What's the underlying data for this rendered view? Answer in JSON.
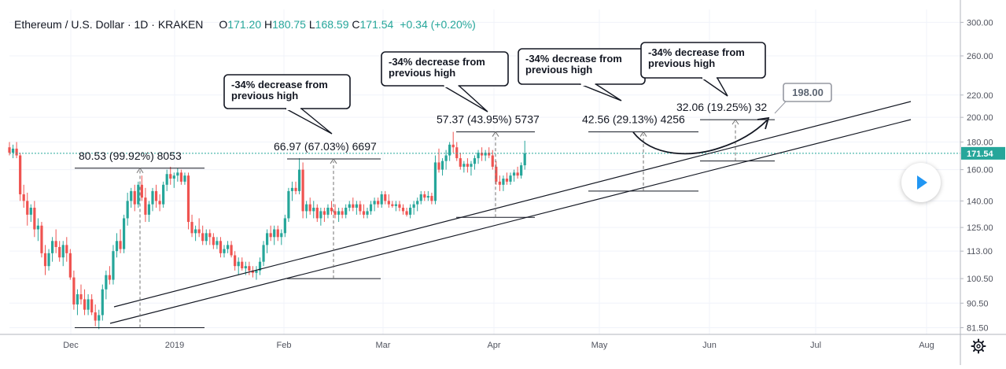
{
  "header": {
    "symbol": "Ethereum / U.S. Dollar · 1D · KRAKEN",
    "o_label": "O",
    "o_value": "171.20",
    "h_label": "H",
    "h_value": "180.75",
    "l_label": "L",
    "l_value": "168.59",
    "c_label": "C",
    "c_value": "171.54",
    "change": "+0.34 (+0.20%)"
  },
  "chart_data": {
    "type": "candlestick",
    "x_ticks": [
      "Dec",
      "2019",
      "Feb",
      "Mar",
      "Apr",
      "May",
      "Jun",
      "Jul",
      "Aug"
    ],
    "y_ticks": [
      "300.00",
      "260.00",
      "220.00",
      "200.00",
      "180.00",
      "160.00",
      "140.00",
      "125.00",
      "113.00",
      "100.50",
      "90.50",
      "81.50"
    ],
    "y_scale": "log",
    "ylim": [
      78,
      305
    ],
    "current_price": 171.54,
    "current_price_label": "171.54",
    "target_label": "198.00",
    "callouts": [
      {
        "line1": "-34% decrease from",
        "line2": "previous high"
      },
      {
        "line1": "-34% decrease from",
        "line2": "previous high"
      },
      {
        "line1": "-34% decrease from",
        "line2": "previous high"
      },
      {
        "line1": "-34% decrease from",
        "line2": "previous high"
      }
    ],
    "measurements": [
      {
        "label": "80.53 (99.92%) 8053",
        "low": 81.5,
        "high": 161
      },
      {
        "label": "66.97 (67.03%) 6697",
        "low": 100.5,
        "high": 167.5
      },
      {
        "label": "57.37 (43.95%) 5737",
        "low": 130.5,
        "high": 188
      },
      {
        "label": "42.56 (29.13%) 4256",
        "low": 146,
        "high": 188
      },
      {
        "label": "32.06 (19.25%) 32",
        "low": 166,
        "high": 198
      }
    ],
    "candles": [
      {
        "o": 176,
        "h": 180,
        "l": 170,
        "c": 172
      },
      {
        "o": 172,
        "h": 178,
        "l": 168,
        "c": 175
      },
      {
        "o": 175,
        "h": 180,
        "l": 168,
        "c": 170
      },
      {
        "o": 170,
        "h": 172,
        "l": 140,
        "c": 144
      },
      {
        "o": 144,
        "h": 150,
        "l": 136,
        "c": 140
      },
      {
        "o": 140,
        "h": 145,
        "l": 126,
        "c": 132
      },
      {
        "o": 132,
        "h": 138,
        "l": 128,
        "c": 136
      },
      {
        "o": 136,
        "h": 140,
        "l": 120,
        "c": 124
      },
      {
        "o": 124,
        "h": 130,
        "l": 118,
        "c": 126
      },
      {
        "o": 126,
        "h": 128,
        "l": 110,
        "c": 112
      },
      {
        "o": 112,
        "h": 116,
        "l": 102,
        "c": 106
      },
      {
        "o": 106,
        "h": 114,
        "l": 104,
        "c": 112
      },
      {
        "o": 112,
        "h": 120,
        "l": 108,
        "c": 118
      },
      {
        "o": 118,
        "h": 124,
        "l": 112,
        "c": 115
      },
      {
        "o": 115,
        "h": 118,
        "l": 108,
        "c": 110
      },
      {
        "o": 110,
        "h": 118,
        "l": 106,
        "c": 116
      },
      {
        "o": 116,
        "h": 120,
        "l": 108,
        "c": 112
      },
      {
        "o": 112,
        "h": 114,
        "l": 100,
        "c": 101
      },
      {
        "o": 101,
        "h": 104,
        "l": 88,
        "c": 90
      },
      {
        "o": 90,
        "h": 96,
        "l": 86,
        "c": 94
      },
      {
        "o": 94,
        "h": 98,
        "l": 90,
        "c": 92
      },
      {
        "o": 92,
        "h": 96,
        "l": 86,
        "c": 88
      },
      {
        "o": 88,
        "h": 94,
        "l": 86,
        "c": 92
      },
      {
        "o": 92,
        "h": 94,
        "l": 86,
        "c": 87
      },
      {
        "o": 87,
        "h": 90,
        "l": 82,
        "c": 84
      },
      {
        "o": 84,
        "h": 88,
        "l": 81,
        "c": 86
      },
      {
        "o": 86,
        "h": 98,
        "l": 84,
        "c": 96
      },
      {
        "o": 96,
        "h": 104,
        "l": 92,
        "c": 102
      },
      {
        "o": 102,
        "h": 106,
        "l": 98,
        "c": 100
      },
      {
        "o": 100,
        "h": 116,
        "l": 98,
        "c": 113
      },
      {
        "o": 113,
        "h": 122,
        "l": 110,
        "c": 118
      },
      {
        "o": 118,
        "h": 124,
        "l": 112,
        "c": 114
      },
      {
        "o": 114,
        "h": 132,
        "l": 112,
        "c": 130
      },
      {
        "o": 130,
        "h": 145,
        "l": 126,
        "c": 140
      },
      {
        "o": 140,
        "h": 148,
        "l": 136,
        "c": 146
      },
      {
        "o": 146,
        "h": 150,
        "l": 134,
        "c": 138
      },
      {
        "o": 138,
        "h": 152,
        "l": 136,
        "c": 150
      },
      {
        "o": 150,
        "h": 156,
        "l": 140,
        "c": 142
      },
      {
        "o": 142,
        "h": 148,
        "l": 128,
        "c": 132
      },
      {
        "o": 132,
        "h": 140,
        "l": 128,
        "c": 138
      },
      {
        "o": 138,
        "h": 148,
        "l": 134,
        "c": 146
      },
      {
        "o": 146,
        "h": 150,
        "l": 136,
        "c": 140
      },
      {
        "o": 140,
        "h": 144,
        "l": 134,
        "c": 138
      },
      {
        "o": 138,
        "h": 152,
        "l": 136,
        "c": 150
      },
      {
        "o": 150,
        "h": 160,
        "l": 146,
        "c": 157
      },
      {
        "o": 157,
        "h": 162,
        "l": 150,
        "c": 154
      },
      {
        "o": 154,
        "h": 158,
        "l": 148,
        "c": 156
      },
      {
        "o": 156,
        "h": 161,
        "l": 152,
        "c": 158
      },
      {
        "o": 158,
        "h": 160,
        "l": 150,
        "c": 152
      },
      {
        "o": 152,
        "h": 158,
        "l": 150,
        "c": 156
      },
      {
        "o": 156,
        "h": 158,
        "l": 124,
        "c": 128
      },
      {
        "o": 128,
        "h": 132,
        "l": 120,
        "c": 122
      },
      {
        "o": 122,
        "h": 126,
        "l": 118,
        "c": 124
      },
      {
        "o": 124,
        "h": 130,
        "l": 120,
        "c": 122
      },
      {
        "o": 122,
        "h": 126,
        "l": 116,
        "c": 118
      },
      {
        "o": 118,
        "h": 124,
        "l": 116,
        "c": 122
      },
      {
        "o": 122,
        "h": 124,
        "l": 116,
        "c": 120
      },
      {
        "o": 120,
        "h": 122,
        "l": 114,
        "c": 116
      },
      {
        "o": 116,
        "h": 120,
        "l": 114,
        "c": 118
      },
      {
        "o": 118,
        "h": 120,
        "l": 110,
        "c": 112
      },
      {
        "o": 112,
        "h": 116,
        "l": 110,
        "c": 114
      },
      {
        "o": 114,
        "h": 118,
        "l": 112,
        "c": 116
      },
      {
        "o": 116,
        "h": 118,
        "l": 110,
        "c": 111
      },
      {
        "o": 111,
        "h": 113,
        "l": 104,
        "c": 106
      },
      {
        "o": 106,
        "h": 110,
        "l": 102,
        "c": 108
      },
      {
        "o": 108,
        "h": 110,
        "l": 104,
        "c": 105
      },
      {
        "o": 105,
        "h": 108,
        "l": 102,
        "c": 106
      },
      {
        "o": 106,
        "h": 108,
        "l": 102,
        "c": 104
      },
      {
        "o": 104,
        "h": 106,
        "l": 101,
        "c": 103
      },
      {
        "o": 103,
        "h": 106,
        "l": 100,
        "c": 104
      },
      {
        "o": 104,
        "h": 110,
        "l": 102,
        "c": 108
      },
      {
        "o": 108,
        "h": 118,
        "l": 106,
        "c": 116
      },
      {
        "o": 116,
        "h": 124,
        "l": 112,
        "c": 122
      },
      {
        "o": 122,
        "h": 126,
        "l": 118,
        "c": 120
      },
      {
        "o": 120,
        "h": 126,
        "l": 116,
        "c": 124
      },
      {
        "o": 124,
        "h": 126,
        "l": 118,
        "c": 120
      },
      {
        "o": 120,
        "h": 124,
        "l": 116,
        "c": 122
      },
      {
        "o": 122,
        "h": 132,
        "l": 120,
        "c": 130
      },
      {
        "o": 130,
        "h": 148,
        "l": 128,
        "c": 146
      },
      {
        "o": 146,
        "h": 152,
        "l": 140,
        "c": 148
      },
      {
        "o": 148,
        "h": 152,
        "l": 144,
        "c": 146
      },
      {
        "o": 146,
        "h": 168,
        "l": 144,
        "c": 160
      },
      {
        "o": 160,
        "h": 165,
        "l": 130,
        "c": 134
      },
      {
        "o": 134,
        "h": 140,
        "l": 130,
        "c": 138
      },
      {
        "o": 138,
        "h": 142,
        "l": 132,
        "c": 134
      },
      {
        "o": 134,
        "h": 140,
        "l": 130,
        "c": 136
      },
      {
        "o": 136,
        "h": 138,
        "l": 128,
        "c": 130
      },
      {
        "o": 130,
        "h": 136,
        "l": 126,
        "c": 134
      },
      {
        "o": 134,
        "h": 136,
        "l": 128,
        "c": 132
      },
      {
        "o": 132,
        "h": 138,
        "l": 130,
        "c": 136
      },
      {
        "o": 136,
        "h": 140,
        "l": 132,
        "c": 134
      },
      {
        "o": 134,
        "h": 138,
        "l": 130,
        "c": 132
      },
      {
        "o": 132,
        "h": 136,
        "l": 128,
        "c": 134
      },
      {
        "o": 134,
        "h": 136,
        "l": 130,
        "c": 132
      },
      {
        "o": 132,
        "h": 138,
        "l": 130,
        "c": 136
      },
      {
        "o": 136,
        "h": 140,
        "l": 134,
        "c": 138
      },
      {
        "o": 138,
        "h": 142,
        "l": 134,
        "c": 136
      },
      {
        "o": 136,
        "h": 140,
        "l": 132,
        "c": 138
      },
      {
        "o": 138,
        "h": 140,
        "l": 132,
        "c": 134
      },
      {
        "o": 134,
        "h": 138,
        "l": 130,
        "c": 132
      },
      {
        "o": 132,
        "h": 136,
        "l": 130,
        "c": 134
      },
      {
        "o": 134,
        "h": 140,
        "l": 132,
        "c": 138
      },
      {
        "o": 138,
        "h": 142,
        "l": 134,
        "c": 140
      },
      {
        "o": 140,
        "h": 142,
        "l": 136,
        "c": 138
      },
      {
        "o": 138,
        "h": 146,
        "l": 136,
        "c": 144
      },
      {
        "o": 144,
        "h": 146,
        "l": 138,
        "c": 140
      },
      {
        "o": 140,
        "h": 144,
        "l": 136,
        "c": 138
      },
      {
        "o": 138,
        "h": 140,
        "l": 136,
        "c": 137
      },
      {
        "o": 137,
        "h": 140,
        "l": 134,
        "c": 138
      },
      {
        "o": 138,
        "h": 140,
        "l": 134,
        "c": 136
      },
      {
        "o": 136,
        "h": 138,
        "l": 132,
        "c": 134
      },
      {
        "o": 134,
        "h": 136,
        "l": 131,
        "c": 132
      },
      {
        "o": 132,
        "h": 138,
        "l": 130,
        "c": 136
      },
      {
        "o": 136,
        "h": 140,
        "l": 132,
        "c": 138
      },
      {
        "o": 138,
        "h": 142,
        "l": 134,
        "c": 140
      },
      {
        "o": 140,
        "h": 146,
        "l": 138,
        "c": 144
      },
      {
        "o": 144,
        "h": 146,
        "l": 140,
        "c": 142
      },
      {
        "o": 142,
        "h": 146,
        "l": 140,
        "c": 143
      },
      {
        "o": 143,
        "h": 145,
        "l": 138,
        "c": 140
      },
      {
        "o": 140,
        "h": 170,
        "l": 138,
        "c": 165
      },
      {
        "o": 165,
        "h": 175,
        "l": 158,
        "c": 160
      },
      {
        "o": 160,
        "h": 168,
        "l": 156,
        "c": 166
      },
      {
        "o": 166,
        "h": 174,
        "l": 160,
        "c": 170
      },
      {
        "o": 170,
        "h": 180,
        "l": 166,
        "c": 178
      },
      {
        "o": 178,
        "h": 188,
        "l": 172,
        "c": 176
      },
      {
        "o": 176,
        "h": 180,
        "l": 166,
        "c": 168
      },
      {
        "o": 168,
        "h": 172,
        "l": 160,
        "c": 162
      },
      {
        "o": 162,
        "h": 166,
        "l": 158,
        "c": 164
      },
      {
        "o": 164,
        "h": 168,
        "l": 158,
        "c": 162
      },
      {
        "o": 162,
        "h": 166,
        "l": 156,
        "c": 164
      },
      {
        "o": 164,
        "h": 170,
        "l": 160,
        "c": 168
      },
      {
        "o": 168,
        "h": 174,
        "l": 164,
        "c": 172
      },
      {
        "o": 172,
        "h": 176,
        "l": 166,
        "c": 170
      },
      {
        "o": 170,
        "h": 174,
        "l": 166,
        "c": 172
      },
      {
        "o": 172,
        "h": 176,
        "l": 168,
        "c": 170
      },
      {
        "o": 170,
        "h": 174,
        "l": 160,
        "c": 162
      },
      {
        "o": 162,
        "h": 166,
        "l": 150,
        "c": 152
      },
      {
        "o": 152,
        "h": 156,
        "l": 146,
        "c": 150
      },
      {
        "o": 150,
        "h": 156,
        "l": 146,
        "c": 154
      },
      {
        "o": 154,
        "h": 158,
        "l": 150,
        "c": 152
      },
      {
        "o": 152,
        "h": 158,
        "l": 150,
        "c": 156
      },
      {
        "o": 156,
        "h": 160,
        "l": 152,
        "c": 158
      },
      {
        "o": 158,
        "h": 162,
        "l": 154,
        "c": 156
      },
      {
        "o": 156,
        "h": 165,
        "l": 154,
        "c": 163
      },
      {
        "o": 163,
        "h": 181,
        "l": 160,
        "c": 171.5
      }
    ]
  }
}
